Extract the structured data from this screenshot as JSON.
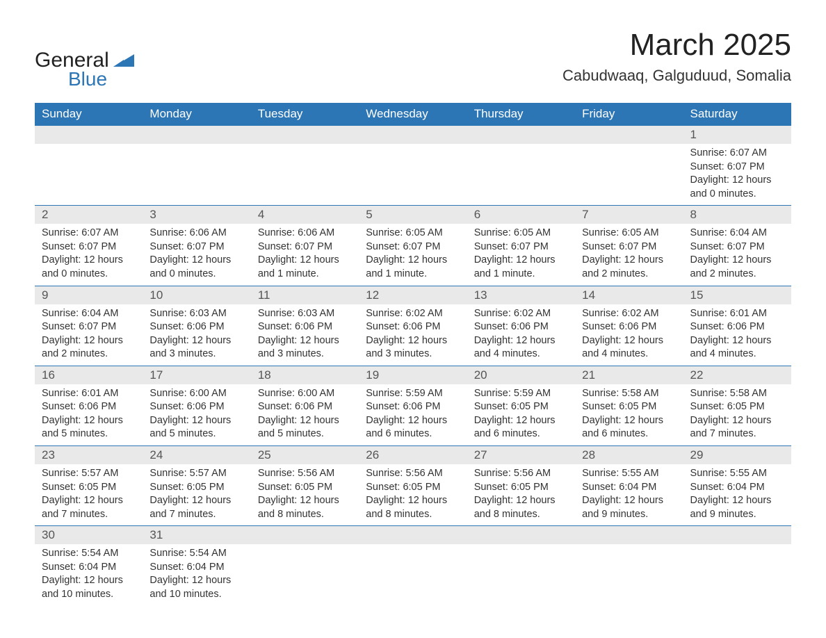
{
  "colors": {
    "header_bg": "#2d76b5",
    "header_text": "#ffffff",
    "daynum_bg": "#e9e9e9",
    "daynum_text": "#555555",
    "body_text": "#333333",
    "row_border": "#2d76b5",
    "page_bg": "#ffffff",
    "logo_blue": "#2d76b5",
    "logo_dark": "#222222"
  },
  "typography": {
    "month_title_fontsize": 44,
    "location_fontsize": 22,
    "dayhead_fontsize": 17,
    "daynum_fontsize": 17,
    "detail_fontsize": 14.5,
    "font_family": "Arial"
  },
  "logo": {
    "word1": "General",
    "word2": "Blue"
  },
  "title": "March 2025",
  "location": "Cabudwaaq, Galguduud, Somalia",
  "weekdays": [
    "Sunday",
    "Monday",
    "Tuesday",
    "Wednesday",
    "Thursday",
    "Friday",
    "Saturday"
  ],
  "weeks": [
    [
      {
        "blank": true
      },
      {
        "blank": true
      },
      {
        "blank": true
      },
      {
        "blank": true
      },
      {
        "blank": true
      },
      {
        "blank": true
      },
      {
        "day": "1",
        "sunrise": "Sunrise: 6:07 AM",
        "sunset": "Sunset: 6:07 PM",
        "daylight1": "Daylight: 12 hours",
        "daylight2": "and 0 minutes."
      }
    ],
    [
      {
        "day": "2",
        "sunrise": "Sunrise: 6:07 AM",
        "sunset": "Sunset: 6:07 PM",
        "daylight1": "Daylight: 12 hours",
        "daylight2": "and 0 minutes."
      },
      {
        "day": "3",
        "sunrise": "Sunrise: 6:06 AM",
        "sunset": "Sunset: 6:07 PM",
        "daylight1": "Daylight: 12 hours",
        "daylight2": "and 0 minutes."
      },
      {
        "day": "4",
        "sunrise": "Sunrise: 6:06 AM",
        "sunset": "Sunset: 6:07 PM",
        "daylight1": "Daylight: 12 hours",
        "daylight2": "and 1 minute."
      },
      {
        "day": "5",
        "sunrise": "Sunrise: 6:05 AM",
        "sunset": "Sunset: 6:07 PM",
        "daylight1": "Daylight: 12 hours",
        "daylight2": "and 1 minute."
      },
      {
        "day": "6",
        "sunrise": "Sunrise: 6:05 AM",
        "sunset": "Sunset: 6:07 PM",
        "daylight1": "Daylight: 12 hours",
        "daylight2": "and 1 minute."
      },
      {
        "day": "7",
        "sunrise": "Sunrise: 6:05 AM",
        "sunset": "Sunset: 6:07 PM",
        "daylight1": "Daylight: 12 hours",
        "daylight2": "and 2 minutes."
      },
      {
        "day": "8",
        "sunrise": "Sunrise: 6:04 AM",
        "sunset": "Sunset: 6:07 PM",
        "daylight1": "Daylight: 12 hours",
        "daylight2": "and 2 minutes."
      }
    ],
    [
      {
        "day": "9",
        "sunrise": "Sunrise: 6:04 AM",
        "sunset": "Sunset: 6:07 PM",
        "daylight1": "Daylight: 12 hours",
        "daylight2": "and 2 minutes."
      },
      {
        "day": "10",
        "sunrise": "Sunrise: 6:03 AM",
        "sunset": "Sunset: 6:06 PM",
        "daylight1": "Daylight: 12 hours",
        "daylight2": "and 3 minutes."
      },
      {
        "day": "11",
        "sunrise": "Sunrise: 6:03 AM",
        "sunset": "Sunset: 6:06 PM",
        "daylight1": "Daylight: 12 hours",
        "daylight2": "and 3 minutes."
      },
      {
        "day": "12",
        "sunrise": "Sunrise: 6:02 AM",
        "sunset": "Sunset: 6:06 PM",
        "daylight1": "Daylight: 12 hours",
        "daylight2": "and 3 minutes."
      },
      {
        "day": "13",
        "sunrise": "Sunrise: 6:02 AM",
        "sunset": "Sunset: 6:06 PM",
        "daylight1": "Daylight: 12 hours",
        "daylight2": "and 4 minutes."
      },
      {
        "day": "14",
        "sunrise": "Sunrise: 6:02 AM",
        "sunset": "Sunset: 6:06 PM",
        "daylight1": "Daylight: 12 hours",
        "daylight2": "and 4 minutes."
      },
      {
        "day": "15",
        "sunrise": "Sunrise: 6:01 AM",
        "sunset": "Sunset: 6:06 PM",
        "daylight1": "Daylight: 12 hours",
        "daylight2": "and 4 minutes."
      }
    ],
    [
      {
        "day": "16",
        "sunrise": "Sunrise: 6:01 AM",
        "sunset": "Sunset: 6:06 PM",
        "daylight1": "Daylight: 12 hours",
        "daylight2": "and 5 minutes."
      },
      {
        "day": "17",
        "sunrise": "Sunrise: 6:00 AM",
        "sunset": "Sunset: 6:06 PM",
        "daylight1": "Daylight: 12 hours",
        "daylight2": "and 5 minutes."
      },
      {
        "day": "18",
        "sunrise": "Sunrise: 6:00 AM",
        "sunset": "Sunset: 6:06 PM",
        "daylight1": "Daylight: 12 hours",
        "daylight2": "and 5 minutes."
      },
      {
        "day": "19",
        "sunrise": "Sunrise: 5:59 AM",
        "sunset": "Sunset: 6:06 PM",
        "daylight1": "Daylight: 12 hours",
        "daylight2": "and 6 minutes."
      },
      {
        "day": "20",
        "sunrise": "Sunrise: 5:59 AM",
        "sunset": "Sunset: 6:05 PM",
        "daylight1": "Daylight: 12 hours",
        "daylight2": "and 6 minutes."
      },
      {
        "day": "21",
        "sunrise": "Sunrise: 5:58 AM",
        "sunset": "Sunset: 6:05 PM",
        "daylight1": "Daylight: 12 hours",
        "daylight2": "and 6 minutes."
      },
      {
        "day": "22",
        "sunrise": "Sunrise: 5:58 AM",
        "sunset": "Sunset: 6:05 PM",
        "daylight1": "Daylight: 12 hours",
        "daylight2": "and 7 minutes."
      }
    ],
    [
      {
        "day": "23",
        "sunrise": "Sunrise: 5:57 AM",
        "sunset": "Sunset: 6:05 PM",
        "daylight1": "Daylight: 12 hours",
        "daylight2": "and 7 minutes."
      },
      {
        "day": "24",
        "sunrise": "Sunrise: 5:57 AM",
        "sunset": "Sunset: 6:05 PM",
        "daylight1": "Daylight: 12 hours",
        "daylight2": "and 7 minutes."
      },
      {
        "day": "25",
        "sunrise": "Sunrise: 5:56 AM",
        "sunset": "Sunset: 6:05 PM",
        "daylight1": "Daylight: 12 hours",
        "daylight2": "and 8 minutes."
      },
      {
        "day": "26",
        "sunrise": "Sunrise: 5:56 AM",
        "sunset": "Sunset: 6:05 PM",
        "daylight1": "Daylight: 12 hours",
        "daylight2": "and 8 minutes."
      },
      {
        "day": "27",
        "sunrise": "Sunrise: 5:56 AM",
        "sunset": "Sunset: 6:05 PM",
        "daylight1": "Daylight: 12 hours",
        "daylight2": "and 8 minutes."
      },
      {
        "day": "28",
        "sunrise": "Sunrise: 5:55 AM",
        "sunset": "Sunset: 6:04 PM",
        "daylight1": "Daylight: 12 hours",
        "daylight2": "and 9 minutes."
      },
      {
        "day": "29",
        "sunrise": "Sunrise: 5:55 AM",
        "sunset": "Sunset: 6:04 PM",
        "daylight1": "Daylight: 12 hours",
        "daylight2": "and 9 minutes."
      }
    ],
    [
      {
        "day": "30",
        "sunrise": "Sunrise: 5:54 AM",
        "sunset": "Sunset: 6:04 PM",
        "daylight1": "Daylight: 12 hours",
        "daylight2": "and 10 minutes."
      },
      {
        "day": "31",
        "sunrise": "Sunrise: 5:54 AM",
        "sunset": "Sunset: 6:04 PM",
        "daylight1": "Daylight: 12 hours",
        "daylight2": "and 10 minutes."
      },
      {
        "blank": true
      },
      {
        "blank": true
      },
      {
        "blank": true
      },
      {
        "blank": true
      },
      {
        "blank": true
      }
    ]
  ]
}
